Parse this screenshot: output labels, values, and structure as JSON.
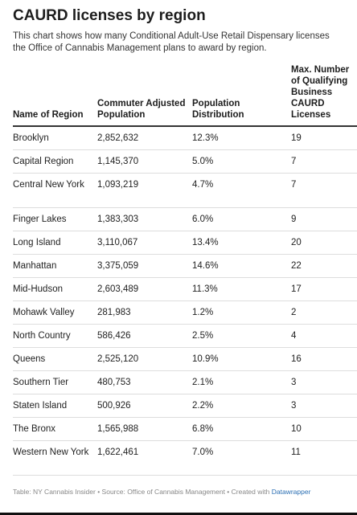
{
  "title": "CAURD licenses by region",
  "description": "This chart shows how many Conditional Adult-Use Retail Dispensary licenses the Office of Cannabis Management plans to award by region.",
  "columns": [
    "Name of Region",
    "Commuter Adjusted Population",
    "Population Distribution",
    "Max. Number of Qualifying Business CAURD Licenses"
  ],
  "rows": [
    [
      "Brooklyn",
      "2,852,632",
      "12.3%",
      "19"
    ],
    [
      "Capital Region",
      "1,145,370",
      "5.0%",
      "7"
    ],
    [
      "Central New York",
      "1,093,219",
      "4.7%",
      "7"
    ],
    [
      "Finger Lakes",
      "1,383,303",
      "6.0%",
      "9"
    ],
    [
      "Long Island",
      "3,110,067",
      "13.4%",
      "20"
    ],
    [
      "Manhattan",
      "3,375,059",
      "14.6%",
      "22"
    ],
    [
      "Mid-Hudson",
      "2,603,489",
      "11.3%",
      "17"
    ],
    [
      "Mohawk Valley",
      "281,983",
      "1.2%",
      "2"
    ],
    [
      "North Country",
      "586,426",
      "2.5%",
      "4"
    ],
    [
      "Queens",
      "2,525,120",
      "10.9%",
      "16"
    ],
    [
      "Southern Tier",
      "480,753",
      "2.1%",
      "3"
    ],
    [
      "Staten Island",
      "500,926",
      "2.2%",
      "3"
    ],
    [
      "The Bronx",
      "1,565,988",
      "6.8%",
      "10"
    ],
    [
      "Western New York",
      "1,622,461",
      "7.0%",
      "11"
    ]
  ],
  "footer": {
    "text": "Table: NY Cannabis Insider • Source: Office of Cannabis Management • Created with ",
    "link": "Datawrapper"
  },
  "chart_data": {
    "type": "table",
    "title": "CAURD licenses by region",
    "columns": [
      "Name of Region",
      "Commuter Adjusted Population",
      "Population Distribution",
      "Max. Number of Qualifying Business CAURD Licenses"
    ],
    "rows": [
      [
        "Brooklyn",
        2852632,
        12.3,
        19
      ],
      [
        "Capital Region",
        1145370,
        5.0,
        7
      ],
      [
        "Central New York",
        1093219,
        4.7,
        7
      ],
      [
        "Finger Lakes",
        1383303,
        6.0,
        9
      ],
      [
        "Long Island",
        3110067,
        13.4,
        20
      ],
      [
        "Manhattan",
        3375059,
        14.6,
        22
      ],
      [
        "Mid-Hudson",
        2603489,
        11.3,
        17
      ],
      [
        "Mohawk Valley",
        281983,
        1.2,
        2
      ],
      [
        "North Country",
        586426,
        2.5,
        4
      ],
      [
        "Queens",
        2525120,
        10.9,
        16
      ],
      [
        "Southern Tier",
        480753,
        2.1,
        3
      ],
      [
        "Staten Island",
        500926,
        2.2,
        3
      ],
      [
        "The Bronx",
        1565988,
        6.8,
        10
      ],
      [
        "Western New York",
        1622461,
        7.0,
        11
      ]
    ]
  }
}
